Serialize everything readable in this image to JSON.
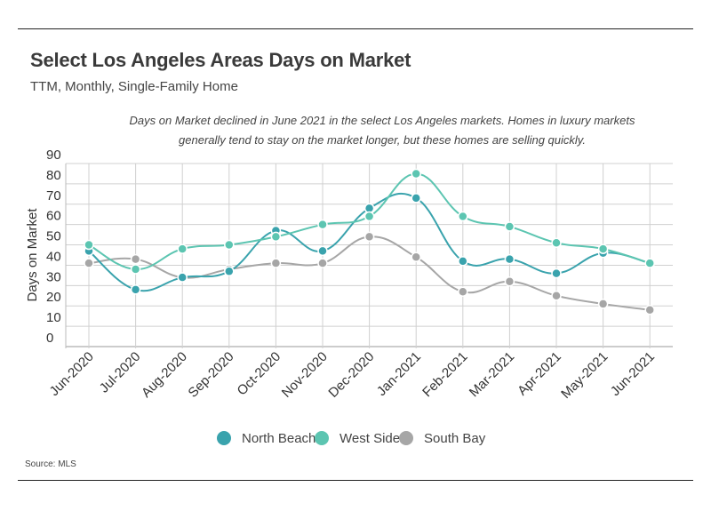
{
  "header": {
    "title": "Select Los Angeles Areas Days on Market",
    "subtitle": "TTM, Monthly, Single-Family Home"
  },
  "annotation": {
    "line1": "Days on Market declined in June 2021 in the select Los Angeles markets. Homes in luxury markets",
    "line2": "generally tend to stay on the market longer, but these homes are selling quickly."
  },
  "footer": {
    "source": "Source:  MLS"
  },
  "chart_data": {
    "type": "line",
    "title": "Select Los Angeles Areas Days on Market",
    "subtitle": "TTM, Monthly, Single-Family Home",
    "xlabel": "",
    "ylabel": "Days on Market",
    "ylim": [
      0,
      90
    ],
    "yticks": [
      0,
      10,
      20,
      30,
      40,
      50,
      60,
      70,
      80,
      90
    ],
    "grid": true,
    "legend_position": "bottom",
    "categories": [
      "Jun-2020",
      "Jul-2020",
      "Aug-2020",
      "Sep-2020",
      "Oct-2020",
      "Nov-2020",
      "Dec-2020",
      "Jan-2021",
      "Feb-2021",
      "Mar-2021",
      "Apr-2021",
      "May-2021",
      "Jun-2021"
    ],
    "series": [
      {
        "name": "North Beach",
        "color": "#3aa3ad",
        "values": [
          47,
          28,
          34,
          37,
          57,
          47,
          68,
          73,
          42,
          43,
          36,
          46,
          41
        ]
      },
      {
        "name": "West Side",
        "color": "#5cc5b1",
        "values": [
          50,
          38,
          48,
          50,
          54,
          60,
          64,
          85,
          64,
          59,
          51,
          48,
          41
        ]
      },
      {
        "name": "South Bay",
        "color": "#a6a6a6",
        "values": [
          41,
          43,
          34,
          38,
          41,
          41,
          54,
          44,
          27,
          32,
          25,
          21,
          18
        ]
      }
    ]
  }
}
